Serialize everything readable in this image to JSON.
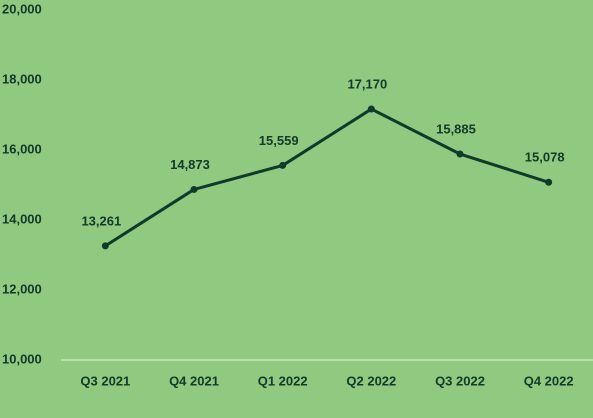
{
  "chart_data": {
    "type": "line",
    "categories": [
      "Q3 2021",
      "Q4 2021",
      "Q1 2022",
      "Q2 2022",
      "Q3 2022",
      "Q4 2022"
    ],
    "values": [
      13261,
      14873,
      15559,
      17170,
      15885,
      15078
    ],
    "value_labels": [
      "13,261",
      "14,873",
      "15,559",
      "17,170",
      "15,885",
      "15,078"
    ],
    "color": "#0f3a2c",
    "ylim": [
      10000,
      20000
    ],
    "yticks": [
      {
        "value": 10000,
        "label": "10,000"
      },
      {
        "value": 12000,
        "label": "12,000"
      },
      {
        "value": 14000,
        "label": "14,000"
      },
      {
        "value": 16000,
        "label": "16,000"
      },
      {
        "value": 18000,
        "label": "18,000"
      },
      {
        "value": 20000,
        "label": "20,000"
      }
    ],
    "grid": false
  }
}
